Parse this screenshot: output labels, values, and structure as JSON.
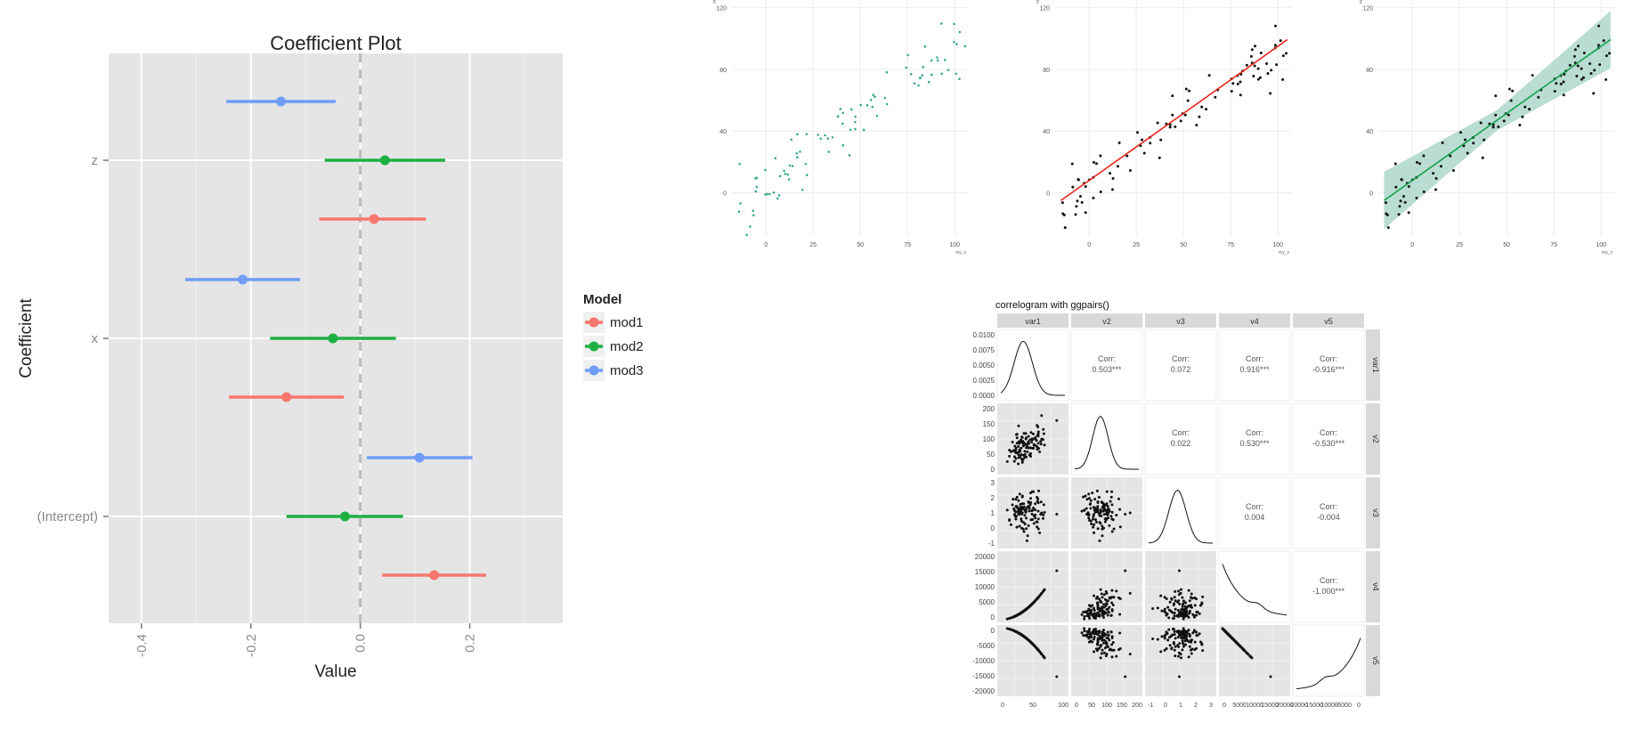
{
  "colors": {
    "panel_bg": "#e5e5e5",
    "grid_major": "#ffffff",
    "mod1": "#f8766d",
    "mod2": "#1fb044",
    "mod3": "#6f9df7",
    "teal_points": "#3aa88a",
    "regression_line": "#e8291d",
    "ribbon": "#b9ddd3",
    "ribbon_line": "#12a04a",
    "strip_bg": "#d9d9d9",
    "dashed": "#bbbbbb"
  },
  "chart_data": [
    {
      "type": "point-range",
      "name": "coefficient-plot",
      "title": "Coefficient Plot",
      "xlabel": "Value",
      "ylabel": "Coefficient",
      "xlim": [
        -0.46,
        0.37
      ],
      "x_ticks": [
        -0.4,
        -0.2,
        0.0,
        0.2
      ],
      "x_tick_labels": [
        "-0.4",
        "-0.2",
        "0.0",
        "0.2"
      ],
      "categories": [
        "(Intercept)",
        "x",
        "z"
      ],
      "legend": {
        "title": "Model",
        "entries": [
          "mod1",
          "mod2",
          "mod3"
        ],
        "position": "right"
      },
      "series": [
        {
          "name": "mod1",
          "points": [
            {
              "coef": "(Intercept)",
              "estimate": 0.135,
              "low": 0.04,
              "high": 0.23
            },
            {
              "coef": "x",
              "estimate": -0.135,
              "low": -0.24,
              "high": -0.03
            },
            {
              "coef": "z",
              "estimate": 0.025,
              "low": -0.075,
              "high": 0.12
            }
          ]
        },
        {
          "name": "mod2",
          "points": [
            {
              "coef": "(Intercept)",
              "estimate": -0.028,
              "low": -0.135,
              "high": 0.078
            },
            {
              "coef": "x",
              "estimate": -0.05,
              "low": -0.165,
              "high": 0.065
            },
            {
              "coef": "z",
              "estimate": 0.045,
              "low": -0.065,
              "high": 0.155
            }
          ]
        },
        {
          "name": "mod3",
          "points": [
            {
              "coef": "(Intercept)",
              "estimate": 0.108,
              "low": 0.012,
              "high": 0.205
            },
            {
              "coef": "x",
              "estimate": -0.215,
              "low": -0.32,
              "high": -0.11
            },
            {
              "coef": "z",
              "estimate": -0.145,
              "low": -0.245,
              "high": -0.045
            }
          ]
        }
      ]
    },
    {
      "type": "scatter",
      "name": "scatter-teal",
      "xlabel": "my_x",
      "ylabel": "my_y",
      "xlim": [
        -18,
        107
      ],
      "ylim": [
        -28,
        125
      ],
      "x_ticks": [
        0,
        25,
        50,
        75,
        100
      ],
      "y_ticks": [
        0,
        40,
        80,
        120
      ],
      "seed": 7
    },
    {
      "type": "scatter",
      "name": "scatter-red-line",
      "xlabel": "my_x",
      "ylabel": "my_y",
      "xlim": [
        -18,
        107
      ],
      "ylim": [
        -28,
        125
      ],
      "x_ticks": [
        0,
        25,
        50,
        75,
        100
      ],
      "y_ticks": [
        0,
        40,
        80,
        120
      ],
      "seed": 11,
      "fit": {
        "intercept": 8,
        "slope": 0.87
      }
    },
    {
      "type": "scatter",
      "name": "scatter-smooth-ribbon",
      "xlabel": "my_x",
      "ylabel": "my_y",
      "xlim": [
        -18,
        107
      ],
      "ylim": [
        -28,
        125
      ],
      "x_ticks": [
        0,
        25,
        50,
        75,
        100
      ],
      "y_ticks": [
        0,
        40,
        80,
        120
      ],
      "seed": 11,
      "fit": {
        "intercept": 8,
        "slope": 0.87,
        "band": 12
      }
    },
    {
      "type": "pairs",
      "name": "correlogram",
      "title": "correlogram with ggpairs()",
      "variables": [
        "var1",
        "v2",
        "v3",
        "v4",
        "v5"
      ],
      "corr_label": "Corr:",
      "correlations": [
        [
          "var1",
          "v2",
          "0.503***"
        ],
        [
          "var1",
          "v3",
          "0.072"
        ],
        [
          "var1",
          "v4",
          "0.916***"
        ],
        [
          "var1",
          "v5",
          "-0.916***"
        ],
        [
          "v2",
          "v3",
          "0.022"
        ],
        [
          "v2",
          "v4",
          "0.530***"
        ],
        [
          "v2",
          "v5",
          "-0.530***"
        ],
        [
          "v3",
          "v4",
          "0.004"
        ],
        [
          "v3",
          "v5",
          "-0.004"
        ],
        [
          "v4",
          "v5",
          "-1.000***"
        ]
      ],
      "row_tick_labels": [
        [
          "0.0100",
          "0.0075",
          "0.0050",
          "0.0025",
          "0.0000"
        ],
        [
          "200",
          "150",
          "100",
          "50",
          "0"
        ],
        [
          "3",
          "2",
          "1",
          "0",
          "-1"
        ],
        [
          "20000",
          "15000",
          "10000",
          "5000",
          "0"
        ],
        [
          "0",
          "-5000",
          "-10000",
          "-15000",
          "-20000"
        ]
      ],
      "col_tick_labels": [
        [
          "0",
          "50",
          "100"
        ],
        [
          "0",
          "50",
          "100",
          "150",
          "200"
        ],
        [
          "-1",
          "0",
          "1",
          "2",
          "3"
        ],
        [
          "0",
          "5000",
          "10000",
          "15000",
          "20000"
        ],
        [
          "-20000",
          "-15000",
          "-10000",
          "-5000",
          "0"
        ]
      ]
    }
  ]
}
